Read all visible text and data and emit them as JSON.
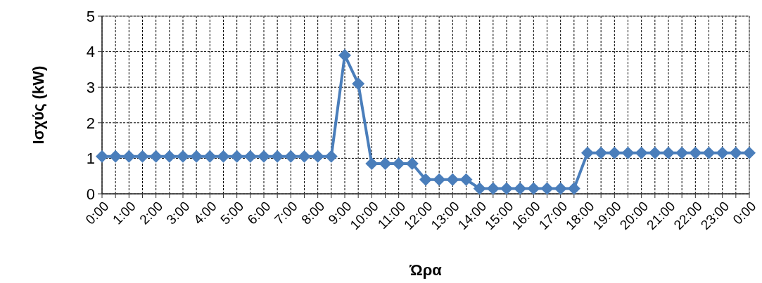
{
  "chart_data": {
    "type": "line",
    "xlabel": "Ώρα",
    "ylabel": "Ισχύς (kW)",
    "categories": [
      "0:00",
      null,
      "1:00",
      null,
      "2:00",
      null,
      "3:00",
      null,
      "4:00",
      null,
      "5:00",
      null,
      "6:00",
      null,
      "7:00",
      null,
      "8:00",
      null,
      "9:00",
      null,
      "10:00",
      null,
      "11:00",
      null,
      "12:00",
      null,
      "13:00",
      null,
      "14:00",
      null,
      "15:00",
      null,
      "16:00",
      null,
      "17:00",
      null,
      "18:00",
      null,
      "19:00",
      null,
      "20:00",
      null,
      "21:00",
      null,
      "22:00",
      null,
      "23:00",
      null,
      "0:00"
    ],
    "series": [
      {
        "color": "#4a7ebb",
        "values": [
          1.05,
          1.05,
          1.05,
          1.05,
          1.05,
          1.05,
          1.05,
          1.05,
          1.05,
          1.05,
          1.05,
          1.05,
          1.05,
          1.05,
          1.05,
          1.05,
          1.05,
          1.05,
          3.9,
          3.1,
          0.85,
          0.85,
          0.85,
          0.85,
          0.4,
          0.4,
          0.4,
          0.4,
          0.15,
          0.15,
          0.15,
          0.15,
          0.15,
          0.15,
          0.15,
          0.15,
          1.15,
          1.15,
          1.15,
          1.15,
          1.15,
          1.15,
          1.15,
          1.15,
          1.15,
          1.15,
          1.15,
          1.15,
          1.15
        ]
      }
    ],
    "ylim": [
      0,
      5
    ],
    "yticks": [
      0,
      1,
      2,
      3,
      4,
      5
    ],
    "grid": true,
    "marker": "diamond",
    "line_style": "solid"
  }
}
